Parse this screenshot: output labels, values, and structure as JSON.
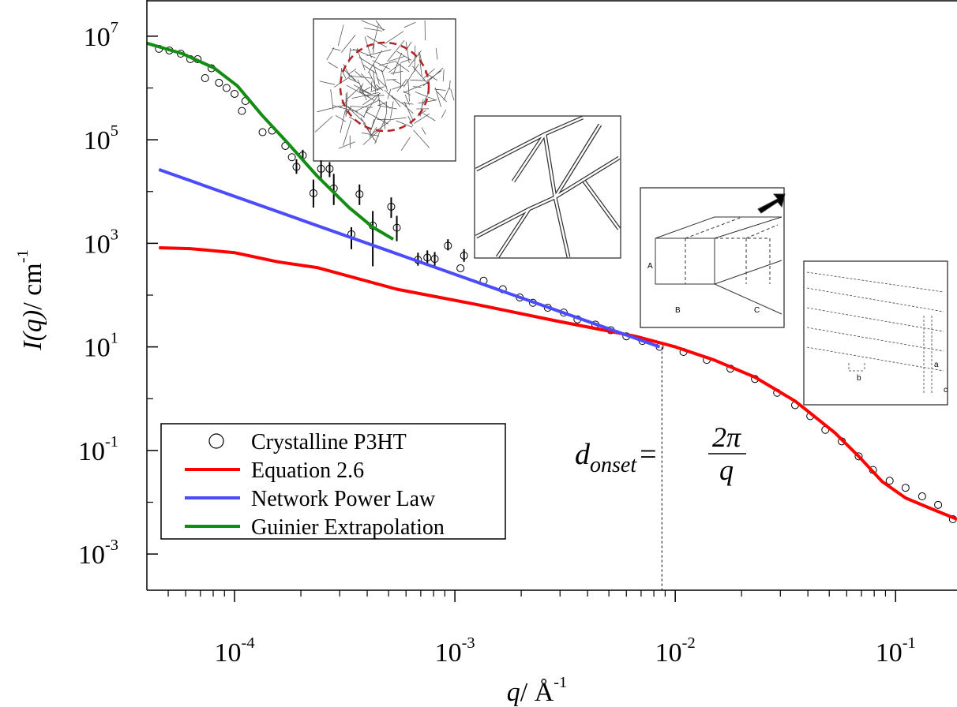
{
  "chart_data": {
    "type": "line",
    "xlog": true,
    "ylog": true,
    "xlim": [
      4e-05,
      0.19
    ],
    "ylim": [
      0.0002,
      50000000
    ],
    "xticks": [
      {
        "value": 0.0001,
        "label": "10",
        "exponent": "-4"
      },
      {
        "value": 0.001,
        "label": "10",
        "exponent": "-3"
      },
      {
        "value": 0.01,
        "label": "10",
        "exponent": "-2"
      },
      {
        "value": 0.1,
        "label": "10",
        "exponent": "-1"
      }
    ],
    "xticks_minor": [
      5e-05,
      6e-05,
      7e-05,
      8e-05,
      9e-05,
      0.0002,
      0.0003,
      0.0004,
      0.0005,
      0.0006,
      0.0007,
      0.0008,
      0.0009,
      0.002,
      0.003,
      0.004,
      0.005,
      0.006,
      0.007,
      0.008,
      0.009,
      0.02,
      0.03,
      0.04,
      0.05,
      0.06,
      0.07,
      0.08,
      0.09
    ],
    "yticks": [
      {
        "value": 10000000,
        "label": "10",
        "exponent": "7"
      },
      {
        "value": 100000,
        "label": "10",
        "exponent": "5"
      },
      {
        "value": 1000,
        "label": "10",
        "exponent": "3"
      },
      {
        "value": 10,
        "label": "10",
        "exponent": "1"
      },
      {
        "value": 0.1,
        "label": "10",
        "exponent": "-1"
      },
      {
        "value": 0.001,
        "label": "10",
        "exponent": "-3"
      }
    ],
    "yticks_minor": [
      1000000,
      10000,
      100,
      1,
      0.01
    ],
    "xlabel": {
      "text": "q",
      "unit": "/ Å",
      "exponent": "-1"
    },
    "ylabel": {
      "text": "I(q)",
      "unit": "/ cm",
      "exponent": "-1"
    },
    "legend": "lower left",
    "annotation": {
      "x": 0.0087,
      "symbol": "d",
      "subscript": "onset",
      "equals": "=",
      "numerator": "2π",
      "denominator": "q"
    },
    "inset_labels": [
      "A",
      "B",
      "C",
      "b",
      "a",
      "c"
    ],
    "series": [
      {
        "name": "Crystalline P3HT",
        "type": "scatter",
        "color": "#000000",
        "x": [
          4.54e-05,
          5.06e-05,
          5.7e-05,
          6.3e-05,
          6.8e-05,
          7.35e-05,
          7.86e-05,
          8.5e-05,
          9.2e-05,
          0.0001,
          0.000108,
          0.000112,
          0.000134,
          0.000148,
          0.00017,
          0.000182,
          0.000191,
          0.000204,
          0.000228,
          0.000247,
          0.00027,
          0.000282,
          0.000339,
          0.000369,
          0.000424,
          0.000514,
          0.000545,
          0.00068,
          0.00075,
          0.00081,
          0.00093,
          0.00106,
          0.0011,
          0.00135,
          0.00165,
          0.00197,
          0.00226,
          0.00264,
          0.00312,
          0.0036,
          0.00434,
          0.0051,
          0.006,
          0.0071,
          0.0085,
          0.0109,
          0.0139,
          0.0178,
          0.023,
          0.029,
          0.035,
          0.041,
          0.048,
          0.057,
          0.068,
          0.079,
          0.094,
          0.111,
          0.132,
          0.156,
          0.182
        ],
        "values": [
          5700000,
          5300000,
          4600000,
          3600000,
          3600000,
          1550000,
          2400000,
          1260000,
          1000000,
          770000,
          360000,
          560000,
          140000,
          150000,
          76000,
          46000,
          30000,
          50000,
          9300,
          27500,
          27500,
          11500,
          1500,
          8900,
          2200,
          5100,
          2000,
          480,
          530,
          500,
          900,
          330,
          580,
          190,
          130,
          90,
          71,
          57,
          46,
          34,
          27,
          21,
          16,
          13,
          10,
          8,
          5.6,
          3.8,
          2.4,
          1.3,
          0.75,
          0.46,
          0.25,
          0.15,
          0.077,
          0.042,
          0.026,
          0.019,
          0.013,
          0.0089,
          0.0047
        ],
        "y_low": [
          null,
          null,
          null,
          null,
          null,
          null,
          null,
          null,
          null,
          null,
          null,
          null,
          null,
          null,
          null,
          null,
          22000,
          38000,
          4900,
          18000,
          19000,
          5500,
          770,
          5500,
          360,
          3100,
          1100,
          370,
          410,
          370,
          730,
          null,
          440,
          null,
          null,
          null,
          null,
          null,
          null,
          null,
          null,
          null,
          null,
          null,
          null,
          null,
          null,
          null,
          null,
          null,
          null,
          null,
          null,
          null,
          null,
          null,
          null,
          null,
          null,
          null,
          null
        ],
        "y_high": [
          null,
          null,
          null,
          null,
          null,
          null,
          null,
          null,
          null,
          null,
          null,
          null,
          null,
          null,
          null,
          null,
          42000,
          64000,
          17000,
          40000,
          37000,
          22000,
          2050,
          13700,
          4200,
          7700,
          3400,
          660,
          730,
          680,
          1200,
          null,
          770,
          null,
          null,
          null,
          null,
          null,
          null,
          null,
          null,
          null,
          null,
          null,
          null,
          null,
          null,
          null,
          null,
          null,
          null,
          null,
          null,
          null,
          null,
          null,
          null,
          null,
          null,
          null,
          null
        ]
      },
      {
        "name": "Equation 2.6",
        "type": "line",
        "color": "#ff0000",
        "x": [
          4.54e-05,
          6.3e-05,
          0.0001,
          0.000157,
          0.000237,
          0.000545,
          0.00125,
          0.00286,
          0.0066,
          0.01,
          0.015,
          0.023,
          0.035,
          0.053,
          0.068,
          0.087,
          0.111,
          0.142,
          0.19
        ],
        "values": [
          820,
          790,
          660,
          440,
          340,
          130,
          66,
          32,
          16,
          10,
          5.6,
          2.6,
          0.9,
          0.22,
          0.077,
          0.025,
          0.0121,
          0.0078,
          0.0047
        ]
      },
      {
        "name": "Network Power Law",
        "type": "line",
        "color": "#4b4bff",
        "x": [
          4.54e-05,
          0.0085
        ],
        "values": [
          26600,
          10
        ]
      },
      {
        "name": "Guinier Extrapolation",
        "type": "line",
        "color": "#138c13",
        "x": [
          4e-05,
          5.8e-05,
          8.06e-05,
          0.000103,
          0.000133,
          0.00017,
          0.000237,
          0.000331,
          0.000424,
          0.000525
        ],
        "values": [
          7300000,
          4600000,
          2450000,
          1100000,
          300000,
          97000,
          20000,
          4900,
          2050,
          1200
        ]
      }
    ]
  }
}
